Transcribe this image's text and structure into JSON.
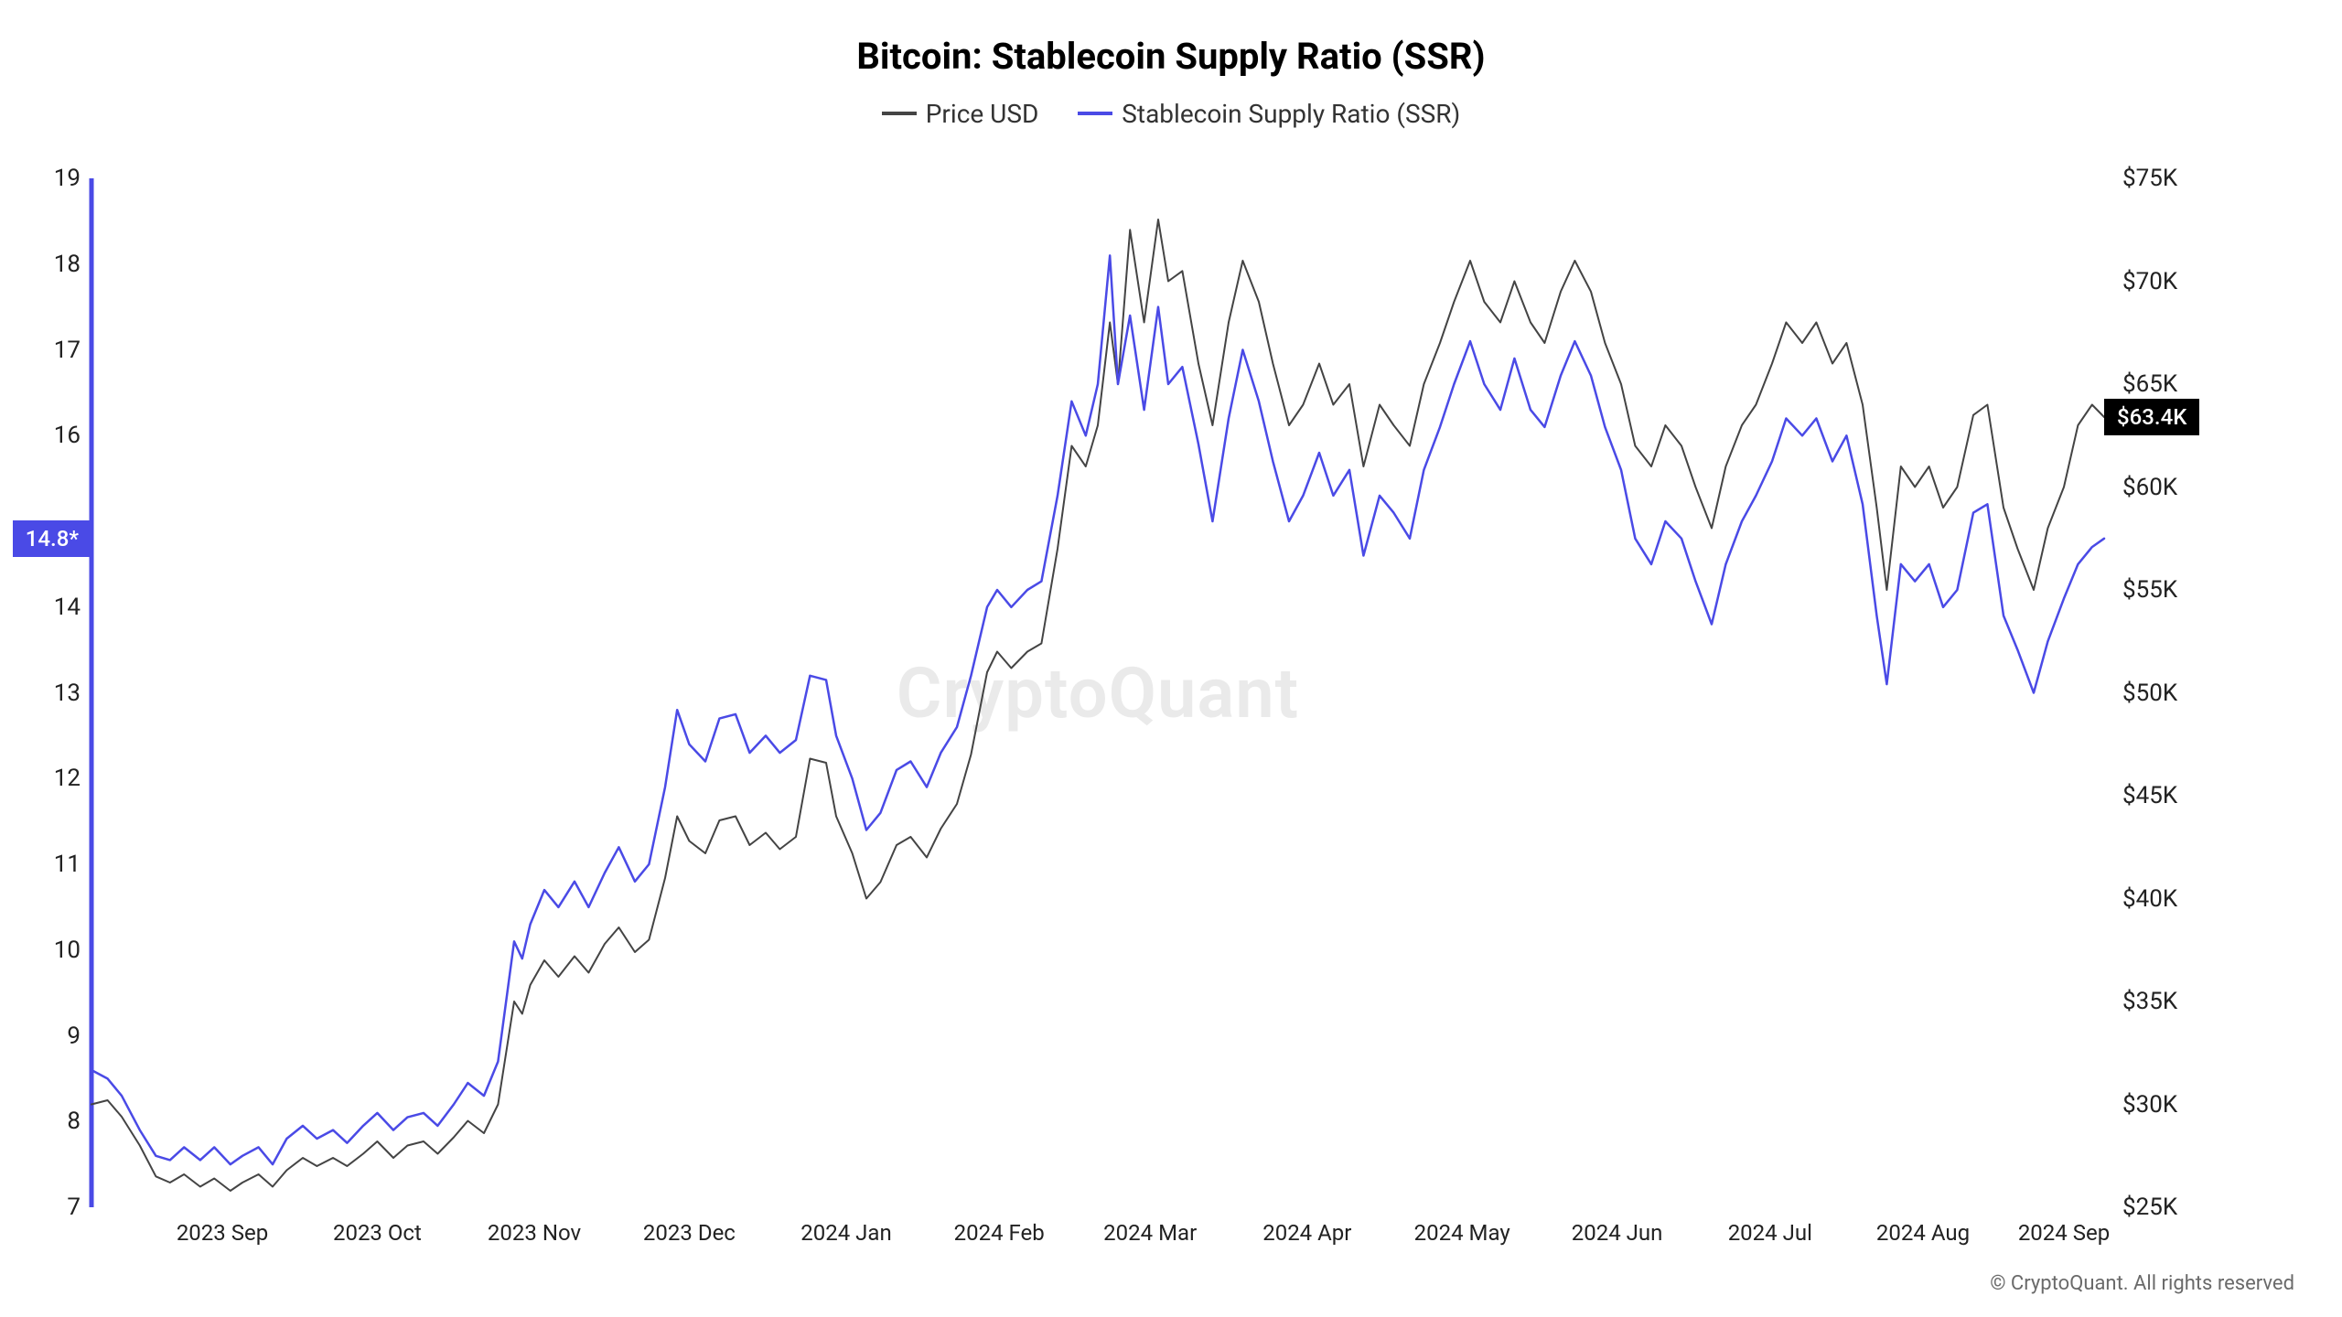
{
  "chart": {
    "type": "line-dual-axis",
    "title": "Bitcoin: Stablecoin Supply Ratio (SSR)",
    "watermark": "CryptoQuant",
    "copyright": "© CryptoQuant. All rights reserved",
    "title_fontsize": 40,
    "legend_fontsize": 28,
    "tick_fontsize": 26,
    "background_color": "#ffffff",
    "left_axis": {
      "min": 7,
      "max": 19,
      "ticks": [
        7,
        8,
        9,
        10,
        11,
        12,
        13,
        14,
        16,
        17,
        18,
        19
      ],
      "tick_labels": [
        "7",
        "8",
        "9",
        "10",
        "11",
        "12",
        "13",
        "14",
        "16",
        "17",
        "18",
        "19"
      ],
      "current_badge": {
        "value": 14.8,
        "label": "14.8*",
        "color": "#4a4ae6"
      }
    },
    "right_axis": {
      "min": 25,
      "max": 75,
      "price_ticks": [
        25,
        30,
        35,
        40,
        45,
        50,
        55,
        60,
        65,
        70,
        75
      ],
      "price_labels": [
        "$25K",
        "$30K",
        "$35K",
        "$40K",
        "$45K",
        "$50K",
        "$55K",
        "$60K",
        "$65K",
        "$70K",
        "$75K"
      ],
      "current_badge": {
        "value": 63.4,
        "label": "$63.4K",
        "color": "#000000"
      }
    },
    "x_axis": {
      "labels": [
        "2023 Sep",
        "2023 Oct",
        "2023 Nov",
        "2023 Dec",
        "2024 Jan",
        "2024 Feb",
        "2024 Mar",
        "2024 Apr",
        "2024 May",
        "2024 Jun",
        "2024 Jul",
        "2024 Aug",
        "2024 Sep"
      ],
      "positions_pct": [
        6.5,
        14.2,
        22.0,
        29.7,
        37.5,
        45.1,
        52.6,
        60.4,
        68.1,
        75.8,
        83.4,
        91.0,
        98.0
      ]
    },
    "legend": {
      "items": [
        {
          "label": "Price USD",
          "color": "#444444"
        },
        {
          "label": "Stablecoin Supply Ratio (SSR)",
          "color": "#4a4ae6"
        }
      ]
    },
    "series_price": {
      "color": "#444444",
      "line_width": 2,
      "data": [
        [
          0.0,
          30.0
        ],
        [
          0.8,
          30.2
        ],
        [
          1.5,
          29.4
        ],
        [
          2.4,
          28.0
        ],
        [
          3.2,
          26.5
        ],
        [
          3.9,
          26.2
        ],
        [
          4.6,
          26.6
        ],
        [
          5.4,
          26.0
        ],
        [
          6.1,
          26.4
        ],
        [
          6.9,
          25.8
        ],
        [
          7.5,
          26.2
        ],
        [
          8.3,
          26.6
        ],
        [
          9.0,
          26.0
        ],
        [
          9.7,
          26.8
        ],
        [
          10.5,
          27.4
        ],
        [
          11.2,
          27.0
        ],
        [
          12.0,
          27.4
        ],
        [
          12.7,
          27.0
        ],
        [
          13.5,
          27.6
        ],
        [
          14.2,
          28.2
        ],
        [
          15.0,
          27.4
        ],
        [
          15.7,
          28.0
        ],
        [
          16.5,
          28.2
        ],
        [
          17.2,
          27.6
        ],
        [
          18.0,
          28.4
        ],
        [
          18.7,
          29.2
        ],
        [
          19.5,
          28.6
        ],
        [
          20.2,
          30.0
        ],
        [
          21.0,
          35.0
        ],
        [
          21.4,
          34.4
        ],
        [
          21.8,
          35.8
        ],
        [
          22.5,
          37.0
        ],
        [
          23.2,
          36.2
        ],
        [
          24.0,
          37.2
        ],
        [
          24.7,
          36.4
        ],
        [
          25.5,
          37.8
        ],
        [
          26.2,
          38.6
        ],
        [
          27.0,
          37.4
        ],
        [
          27.7,
          38.0
        ],
        [
          28.5,
          41.0
        ],
        [
          29.1,
          44.0
        ],
        [
          29.7,
          42.8
        ],
        [
          30.5,
          42.2
        ],
        [
          31.2,
          43.8
        ],
        [
          32.0,
          44.0
        ],
        [
          32.7,
          42.6
        ],
        [
          33.5,
          43.2
        ],
        [
          34.2,
          42.4
        ],
        [
          35.0,
          43.0
        ],
        [
          35.7,
          46.8
        ],
        [
          36.5,
          46.6
        ],
        [
          37.0,
          44.0
        ],
        [
          37.8,
          42.2
        ],
        [
          38.5,
          40.0
        ],
        [
          39.2,
          40.8
        ],
        [
          40.0,
          42.6
        ],
        [
          40.7,
          43.0
        ],
        [
          41.5,
          42.0
        ],
        [
          42.2,
          43.4
        ],
        [
          43.0,
          44.6
        ],
        [
          43.7,
          47.0
        ],
        [
          44.5,
          51.0
        ],
        [
          45.0,
          52.0
        ],
        [
          45.7,
          51.2
        ],
        [
          46.5,
          52.0
        ],
        [
          47.2,
          52.4
        ],
        [
          48.0,
          57.0
        ],
        [
          48.7,
          62.0
        ],
        [
          49.4,
          61.0
        ],
        [
          50.0,
          63.0
        ],
        [
          50.6,
          68.0
        ],
        [
          51.0,
          65.0
        ],
        [
          51.6,
          72.5
        ],
        [
          52.3,
          68.0
        ],
        [
          53.0,
          73.0
        ],
        [
          53.5,
          70.0
        ],
        [
          54.2,
          70.5
        ],
        [
          55.0,
          66.0
        ],
        [
          55.7,
          63.0
        ],
        [
          56.5,
          68.0
        ],
        [
          57.2,
          71.0
        ],
        [
          58.0,
          69.0
        ],
        [
          58.7,
          66.0
        ],
        [
          59.5,
          63.0
        ],
        [
          60.2,
          64.0
        ],
        [
          61.0,
          66.0
        ],
        [
          61.7,
          64.0
        ],
        [
          62.5,
          65.0
        ],
        [
          63.2,
          61.0
        ],
        [
          64.0,
          64.0
        ],
        [
          64.7,
          63.0
        ],
        [
          65.5,
          62.0
        ],
        [
          66.2,
          65.0
        ],
        [
          67.0,
          67.0
        ],
        [
          67.7,
          69.0
        ],
        [
          68.5,
          71.0
        ],
        [
          69.2,
          69.0
        ],
        [
          70.0,
          68.0
        ],
        [
          70.7,
          70.0
        ],
        [
          71.5,
          68.0
        ],
        [
          72.2,
          67.0
        ],
        [
          73.0,
          69.5
        ],
        [
          73.7,
          71.0
        ],
        [
          74.5,
          69.5
        ],
        [
          75.2,
          67.0
        ],
        [
          76.0,
          65.0
        ],
        [
          76.7,
          62.0
        ],
        [
          77.5,
          61.0
        ],
        [
          78.2,
          63.0
        ],
        [
          79.0,
          62.0
        ],
        [
          79.7,
          60.0
        ],
        [
          80.5,
          58.0
        ],
        [
          81.2,
          61.0
        ],
        [
          82.0,
          63.0
        ],
        [
          82.7,
          64.0
        ],
        [
          83.5,
          66.0
        ],
        [
          84.2,
          68.0
        ],
        [
          85.0,
          67.0
        ],
        [
          85.7,
          68.0
        ],
        [
          86.5,
          66.0
        ],
        [
          87.2,
          67.0
        ],
        [
          88.0,
          64.0
        ],
        [
          88.7,
          59.0
        ],
        [
          89.2,
          55.0
        ],
        [
          89.9,
          61.0
        ],
        [
          90.6,
          60.0
        ],
        [
          91.3,
          61.0
        ],
        [
          92.0,
          59.0
        ],
        [
          92.7,
          60.0
        ],
        [
          93.5,
          63.5
        ],
        [
          94.2,
          64.0
        ],
        [
          95.0,
          59.0
        ],
        [
          95.7,
          57.0
        ],
        [
          96.5,
          55.0
        ],
        [
          97.2,
          58.0
        ],
        [
          98.0,
          60.0
        ],
        [
          98.7,
          63.0
        ],
        [
          99.4,
          64.0
        ],
        [
          100.0,
          63.4
        ]
      ]
    },
    "series_ssr": {
      "color": "#4a4ae6",
      "line_width": 2.5,
      "data": [
        [
          0.0,
          8.6
        ],
        [
          0.8,
          8.5
        ],
        [
          1.5,
          8.3
        ],
        [
          2.4,
          7.9
        ],
        [
          3.2,
          7.6
        ],
        [
          3.9,
          7.55
        ],
        [
          4.6,
          7.7
        ],
        [
          5.4,
          7.55
        ],
        [
          6.1,
          7.7
        ],
        [
          6.9,
          7.5
        ],
        [
          7.5,
          7.6
        ],
        [
          8.3,
          7.7
        ],
        [
          9.0,
          7.5
        ],
        [
          9.7,
          7.8
        ],
        [
          10.5,
          7.95
        ],
        [
          11.2,
          7.8
        ],
        [
          12.0,
          7.9
        ],
        [
          12.7,
          7.75
        ],
        [
          13.5,
          7.95
        ],
        [
          14.2,
          8.1
        ],
        [
          15.0,
          7.9
        ],
        [
          15.7,
          8.05
        ],
        [
          16.5,
          8.1
        ],
        [
          17.2,
          7.95
        ],
        [
          18.0,
          8.2
        ],
        [
          18.7,
          8.45
        ],
        [
          19.5,
          8.3
        ],
        [
          20.2,
          8.7
        ],
        [
          21.0,
          10.1
        ],
        [
          21.4,
          9.9
        ],
        [
          21.8,
          10.3
        ],
        [
          22.5,
          10.7
        ],
        [
          23.2,
          10.5
        ],
        [
          24.0,
          10.8
        ],
        [
          24.7,
          10.5
        ],
        [
          25.5,
          10.9
        ],
        [
          26.2,
          11.2
        ],
        [
          27.0,
          10.8
        ],
        [
          27.7,
          11.0
        ],
        [
          28.5,
          11.9
        ],
        [
          29.1,
          12.8
        ],
        [
          29.7,
          12.4
        ],
        [
          30.5,
          12.2
        ],
        [
          31.2,
          12.7
        ],
        [
          32.0,
          12.75
        ],
        [
          32.7,
          12.3
        ],
        [
          33.5,
          12.5
        ],
        [
          34.2,
          12.3
        ],
        [
          35.0,
          12.45
        ],
        [
          35.7,
          13.2
        ],
        [
          36.5,
          13.15
        ],
        [
          37.0,
          12.5
        ],
        [
          37.8,
          12.0
        ],
        [
          38.5,
          11.4
        ],
        [
          39.2,
          11.6
        ],
        [
          40.0,
          12.1
        ],
        [
          40.7,
          12.2
        ],
        [
          41.5,
          11.9
        ],
        [
          42.2,
          12.3
        ],
        [
          43.0,
          12.6
        ],
        [
          43.7,
          13.2
        ],
        [
          44.5,
          14.0
        ],
        [
          45.0,
          14.2
        ],
        [
          45.7,
          14.0
        ],
        [
          46.5,
          14.2
        ],
        [
          47.2,
          14.3
        ],
        [
          48.0,
          15.3
        ],
        [
          48.7,
          16.4
        ],
        [
          49.4,
          16.0
        ],
        [
          50.0,
          16.6
        ],
        [
          50.6,
          18.1
        ],
        [
          51.0,
          16.6
        ],
        [
          51.6,
          17.4
        ],
        [
          52.3,
          16.3
        ],
        [
          53.0,
          17.5
        ],
        [
          53.5,
          16.6
        ],
        [
          54.2,
          16.8
        ],
        [
          55.0,
          15.9
        ],
        [
          55.7,
          15.0
        ],
        [
          56.5,
          16.2
        ],
        [
          57.2,
          17.0
        ],
        [
          58.0,
          16.4
        ],
        [
          58.7,
          15.7
        ],
        [
          59.5,
          15.0
        ],
        [
          60.2,
          15.3
        ],
        [
          61.0,
          15.8
        ],
        [
          61.7,
          15.3
        ],
        [
          62.5,
          15.6
        ],
        [
          63.2,
          14.6
        ],
        [
          64.0,
          15.3
        ],
        [
          64.7,
          15.1
        ],
        [
          65.5,
          14.8
        ],
        [
          66.2,
          15.6
        ],
        [
          67.0,
          16.1
        ],
        [
          67.7,
          16.6
        ],
        [
          68.5,
          17.1
        ],
        [
          69.2,
          16.6
        ],
        [
          70.0,
          16.3
        ],
        [
          70.7,
          16.9
        ],
        [
          71.5,
          16.3
        ],
        [
          72.2,
          16.1
        ],
        [
          73.0,
          16.7
        ],
        [
          73.7,
          17.1
        ],
        [
          74.5,
          16.7
        ],
        [
          75.2,
          16.1
        ],
        [
          76.0,
          15.6
        ],
        [
          76.7,
          14.8
        ],
        [
          77.5,
          14.5
        ],
        [
          78.2,
          15.0
        ],
        [
          79.0,
          14.8
        ],
        [
          79.7,
          14.3
        ],
        [
          80.5,
          13.8
        ],
        [
          81.2,
          14.5
        ],
        [
          82.0,
          15.0
        ],
        [
          82.7,
          15.3
        ],
        [
          83.5,
          15.7
        ],
        [
          84.2,
          16.2
        ],
        [
          85.0,
          16.0
        ],
        [
          85.7,
          16.2
        ],
        [
          86.5,
          15.7
        ],
        [
          87.2,
          16.0
        ],
        [
          88.0,
          15.2
        ],
        [
          88.7,
          13.9
        ],
        [
          89.2,
          13.1
        ],
        [
          89.9,
          14.5
        ],
        [
          90.6,
          14.3
        ],
        [
          91.3,
          14.5
        ],
        [
          92.0,
          14.0
        ],
        [
          92.7,
          14.2
        ],
        [
          93.5,
          15.1
        ],
        [
          94.2,
          15.2
        ],
        [
          95.0,
          13.9
        ],
        [
          95.7,
          13.5
        ],
        [
          96.5,
          13.0
        ],
        [
          97.2,
          13.6
        ],
        [
          98.0,
          14.1
        ],
        [
          98.7,
          14.5
        ],
        [
          99.4,
          14.7
        ],
        [
          100.0,
          14.8
        ]
      ]
    }
  }
}
